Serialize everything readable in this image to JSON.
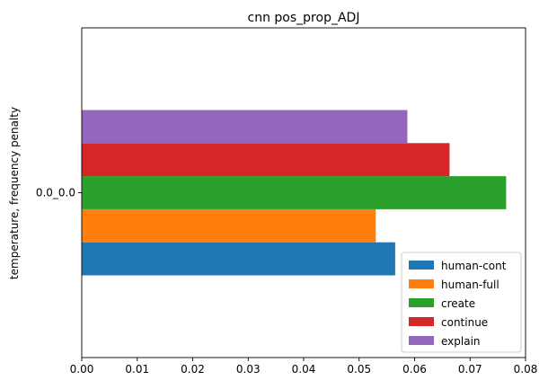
{
  "chart_data": {
    "type": "bar",
    "orientation": "horizontal",
    "title": "cnn pos_prop_ADJ",
    "xlabel": "",
    "ylabel": "temperature, frequency penalty",
    "categories": [
      "0.0_0.0"
    ],
    "xlim": [
      0,
      0.08
    ],
    "xticks": [
      0.0,
      0.01,
      0.02,
      0.03,
      0.04,
      0.05,
      0.06,
      0.07,
      0.08
    ],
    "xtick_labels": [
      "0.00",
      "0.01",
      "0.02",
      "0.03",
      "0.04",
      "0.05",
      "0.06",
      "0.07",
      "0.08"
    ],
    "grid": false,
    "legend_position": "lower-right",
    "series": [
      {
        "name": "human-cont",
        "color": "#1f77b4",
        "values": [
          0.0565
        ]
      },
      {
        "name": "human-full",
        "color": "#ff7f0e",
        "values": [
          0.053
        ]
      },
      {
        "name": "create",
        "color": "#2ca02c",
        "values": [
          0.0765
        ]
      },
      {
        "name": "continue",
        "color": "#d62728",
        "values": [
          0.0663
        ]
      },
      {
        "name": "explain",
        "color": "#9467bd",
        "values": [
          0.0587
        ]
      }
    ]
  }
}
